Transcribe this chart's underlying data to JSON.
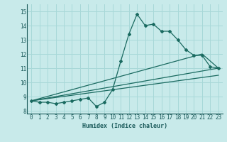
{
  "xlabel": "Humidex (Indice chaleur)",
  "bg_color": "#c8eaea",
  "grid_color": "#a8d8d8",
  "line_color": "#1a6a60",
  "xlim": [
    -0.5,
    23.5
  ],
  "ylim": [
    7.8,
    15.5
  ],
  "xticks": [
    0,
    1,
    2,
    3,
    4,
    5,
    6,
    7,
    8,
    9,
    10,
    11,
    12,
    13,
    14,
    15,
    16,
    17,
    18,
    19,
    20,
    21,
    22,
    23
  ],
  "yticks": [
    8,
    9,
    10,
    11,
    12,
    13,
    14,
    15
  ],
  "main_x": [
    0,
    1,
    2,
    3,
    4,
    5,
    6,
    7,
    8,
    9,
    10,
    11,
    12,
    13,
    14,
    15,
    16,
    17,
    18,
    19,
    20,
    21,
    22,
    23
  ],
  "main_y": [
    8.7,
    8.6,
    8.6,
    8.5,
    8.6,
    8.7,
    8.8,
    8.9,
    8.3,
    8.6,
    9.5,
    11.5,
    13.4,
    14.8,
    14.0,
    14.1,
    13.6,
    13.6,
    13.0,
    12.3,
    11.9,
    11.9,
    11.1,
    11.0
  ],
  "trend1_x": [
    0,
    23
  ],
  "trend1_y": [
    8.7,
    11.0
  ],
  "trend2_x": [
    0,
    21,
    23
  ],
  "trend2_y": [
    8.7,
    12.0,
    11.0
  ],
  "trend3_x": [
    0,
    23
  ],
  "trend3_y": [
    8.7,
    10.5
  ]
}
